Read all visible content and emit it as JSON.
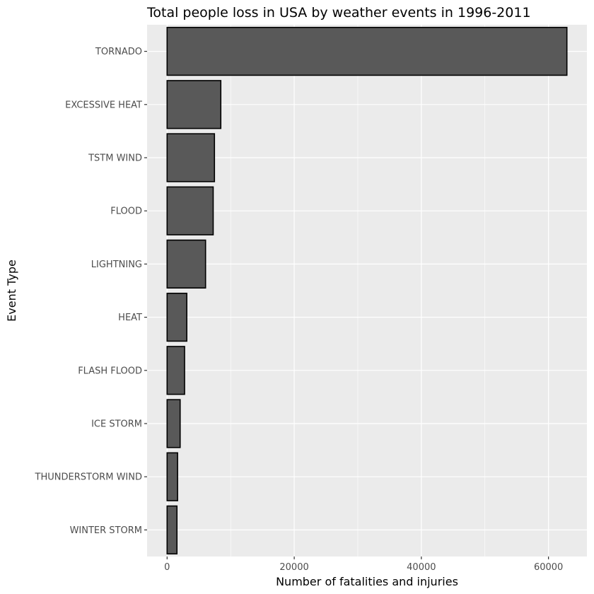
{
  "chart_data": {
    "type": "bar",
    "orientation": "horizontal",
    "title": "Total people loss in USA by weather events in 1996-2011",
    "xlabel": "Number of fatalities and injuries",
    "ylabel": "Event Type",
    "categories": [
      "TORNADO",
      "EXCESSIVE HEAT",
      "TSTM WIND",
      "FLOOD",
      "LIGHTNING",
      "HEAT",
      "FLASH FLOOD",
      "ICE STORM",
      "THUNDERSTORM WIND",
      "WINTER STORM"
    ],
    "values": [
      62900,
      8450,
      7450,
      7250,
      6050,
      3100,
      2750,
      2050,
      1650,
      1550
    ],
    "xlim": [
      -3150,
      66050
    ],
    "xticks": [
      0,
      20000,
      40000,
      60000
    ],
    "xtick_labels": [
      "0",
      "20000",
      "40000",
      "60000"
    ],
    "grid": true,
    "colors": {
      "panel": "#ebebeb",
      "bar_fill": "#595959",
      "bar_stroke": "#000000",
      "grid": "#ffffff"
    }
  }
}
